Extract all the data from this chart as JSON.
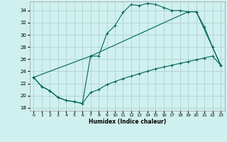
{
  "xlabel": "Humidex (Indice chaleur)",
  "bg_color": "#cff0ee",
  "grid_color": "#aaccc8",
  "line_color": "#006655",
  "xlim": [
    -0.5,
    23.5
  ],
  "ylim": [
    17.5,
    35.5
  ],
  "yticks": [
    18,
    20,
    22,
    24,
    26,
    28,
    30,
    32,
    34
  ],
  "xticks": [
    0,
    1,
    2,
    3,
    4,
    5,
    6,
    7,
    8,
    9,
    10,
    11,
    12,
    13,
    14,
    15,
    16,
    17,
    18,
    19,
    20,
    21,
    22,
    23
  ],
  "line1_x": [
    0,
    1,
    2,
    3,
    4,
    5,
    6,
    7,
    8,
    9,
    10,
    11,
    12,
    13,
    14,
    15,
    16,
    17,
    18,
    19,
    20,
    21,
    22,
    23
  ],
  "line1_y": [
    23.0,
    21.5,
    20.8,
    19.7,
    19.2,
    19.0,
    18.7,
    26.5,
    26.5,
    30.2,
    31.5,
    33.7,
    35.0,
    34.8,
    35.2,
    35.0,
    34.5,
    34.0,
    34.0,
    33.8,
    33.8,
    31.3,
    28.0,
    25.0
  ],
  "line2_x": [
    0,
    1,
    2,
    3,
    4,
    5,
    6,
    7,
    8,
    9,
    10,
    11,
    12,
    13,
    14,
    15,
    16,
    17,
    18,
    19,
    20,
    21,
    22,
    23
  ],
  "line2_y": [
    23.0,
    21.5,
    20.8,
    19.7,
    19.2,
    19.0,
    18.7,
    20.5,
    21.0,
    21.8,
    22.3,
    22.8,
    23.2,
    23.6,
    24.0,
    24.4,
    24.7,
    25.0,
    25.3,
    25.6,
    25.9,
    26.2,
    26.5,
    25.0
  ],
  "line3_x": [
    0,
    7,
    19,
    20,
    23
  ],
  "line3_y": [
    23.0,
    26.5,
    33.8,
    33.8,
    25.0
  ]
}
